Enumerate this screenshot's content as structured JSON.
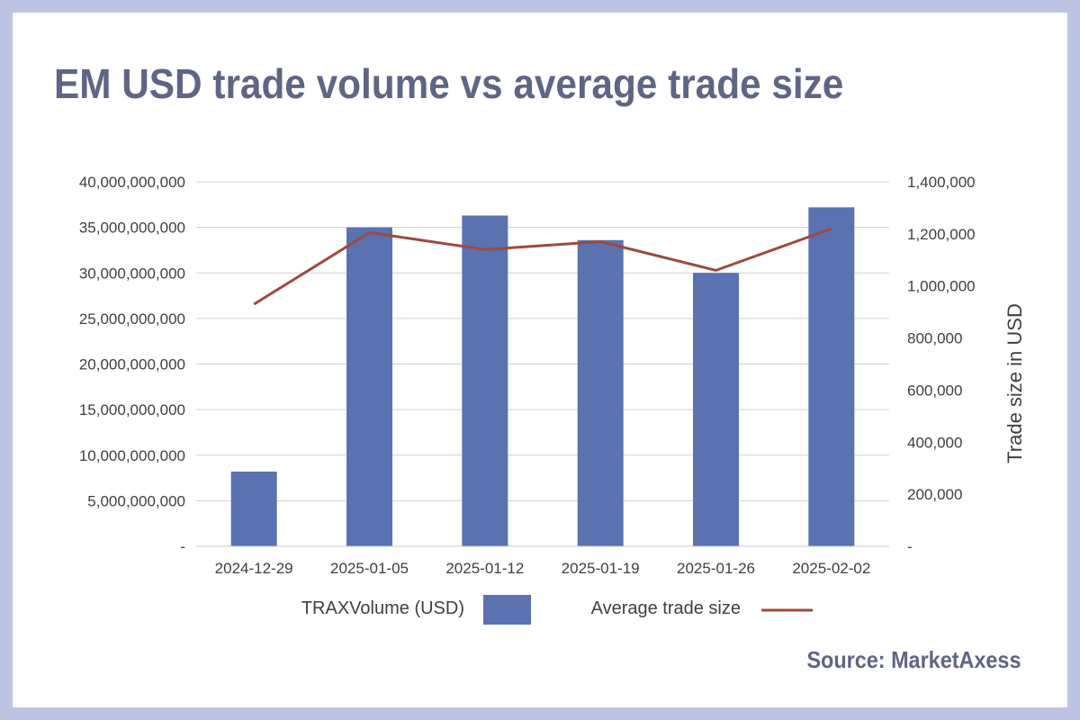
{
  "title": "EM USD trade volume vs average trade size",
  "source": "Source: MarketAxess",
  "colors": {
    "background": "#bcc3e3",
    "bar": "#5a72b0",
    "line": "#9c4a3f",
    "title": "#5f6585",
    "grid": "#d0d0d0"
  },
  "chart_data": {
    "type": "bar",
    "categories": [
      "2024-12-29",
      "2025-01-05",
      "2025-01-12",
      "2025-01-19",
      "2025-01-26",
      "2025-02-02"
    ],
    "series": [
      {
        "name": "TRAXVolume (USD)",
        "type": "bar",
        "axis": "left",
        "values": [
          8200000000,
          35000000000,
          36300000000,
          33600000000,
          30000000000,
          37200000000
        ]
      },
      {
        "name": "Average trade size",
        "type": "line",
        "axis": "right",
        "values": [
          930000,
          1205000,
          1140000,
          1170000,
          1060000,
          1220000
        ]
      }
    ],
    "y_left": {
      "label": "",
      "range": [
        0,
        40000000000
      ],
      "ticks": [
        "-",
        "5,000,000,000",
        "10,000,000,000",
        "15,000,000,000",
        "20,000,000,000",
        "25,000,000,000",
        "30,000,000,000",
        "35,000,000,000",
        "40,000,000,000"
      ]
    },
    "y_right": {
      "label": "Trade size in USD",
      "range": [
        0,
        1400000
      ],
      "ticks": [
        "-",
        "200,000",
        "400,000",
        "600,000",
        "800,000",
        "1,000,000",
        "1,200,000",
        "1,400,000"
      ]
    },
    "grid": true,
    "legend_position": "bottom"
  }
}
